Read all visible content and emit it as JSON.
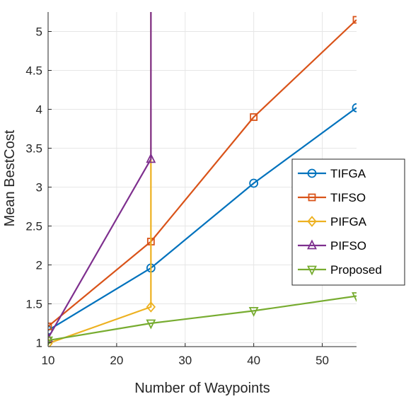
{
  "chart_data": {
    "type": "line",
    "xlabel": "Number of Waypoints",
    "ylabel": "Mean BestCost",
    "xlim": [
      10,
      55
    ],
    "ylim": [
      0.95,
      5.25
    ],
    "xticks": [
      10,
      20,
      30,
      40,
      50
    ],
    "yticks": [
      1,
      1.5,
      2,
      2.5,
      3,
      3.5,
      4,
      4.5,
      5
    ],
    "ytick_labels": [
      "1",
      "1.5",
      "2",
      "2.5",
      "3",
      "3.5",
      "4",
      "4.5",
      "5"
    ],
    "grid": true,
    "legend_position": "right",
    "series": [
      {
        "name": "TIFGA",
        "color": "#0072BD",
        "marker": "circle",
        "points": [
          [
            10,
            1.16
          ],
          [
            25,
            1.96
          ],
          [
            40,
            3.05
          ],
          [
            55,
            4.02
          ]
        ]
      },
      {
        "name": "TIFSO",
        "color": "#D95319",
        "marker": "square",
        "points": [
          [
            10,
            1.21
          ],
          [
            25,
            2.3
          ],
          [
            40,
            3.9
          ],
          [
            55,
            5.15
          ]
        ]
      },
      {
        "name": "PIFGA",
        "color": "#EDB120",
        "marker": "diamond",
        "points": [
          [
            10,
            0.99
          ],
          [
            25,
            1.46
          ],
          [
            25,
            5.25
          ]
        ]
      },
      {
        "name": "PIFSO",
        "color": "#7E2F8E",
        "marker": "triangle-up",
        "points": [
          [
            10,
            1.06
          ],
          [
            25,
            3.36
          ],
          [
            25,
            5.25
          ]
        ]
      },
      {
        "name": "Proposed",
        "color": "#77AC30",
        "marker": "triangle-down",
        "points": [
          [
            10,
            1.03
          ],
          [
            25,
            1.25
          ],
          [
            40,
            1.41
          ],
          [
            55,
            1.6
          ]
        ]
      }
    ]
  }
}
